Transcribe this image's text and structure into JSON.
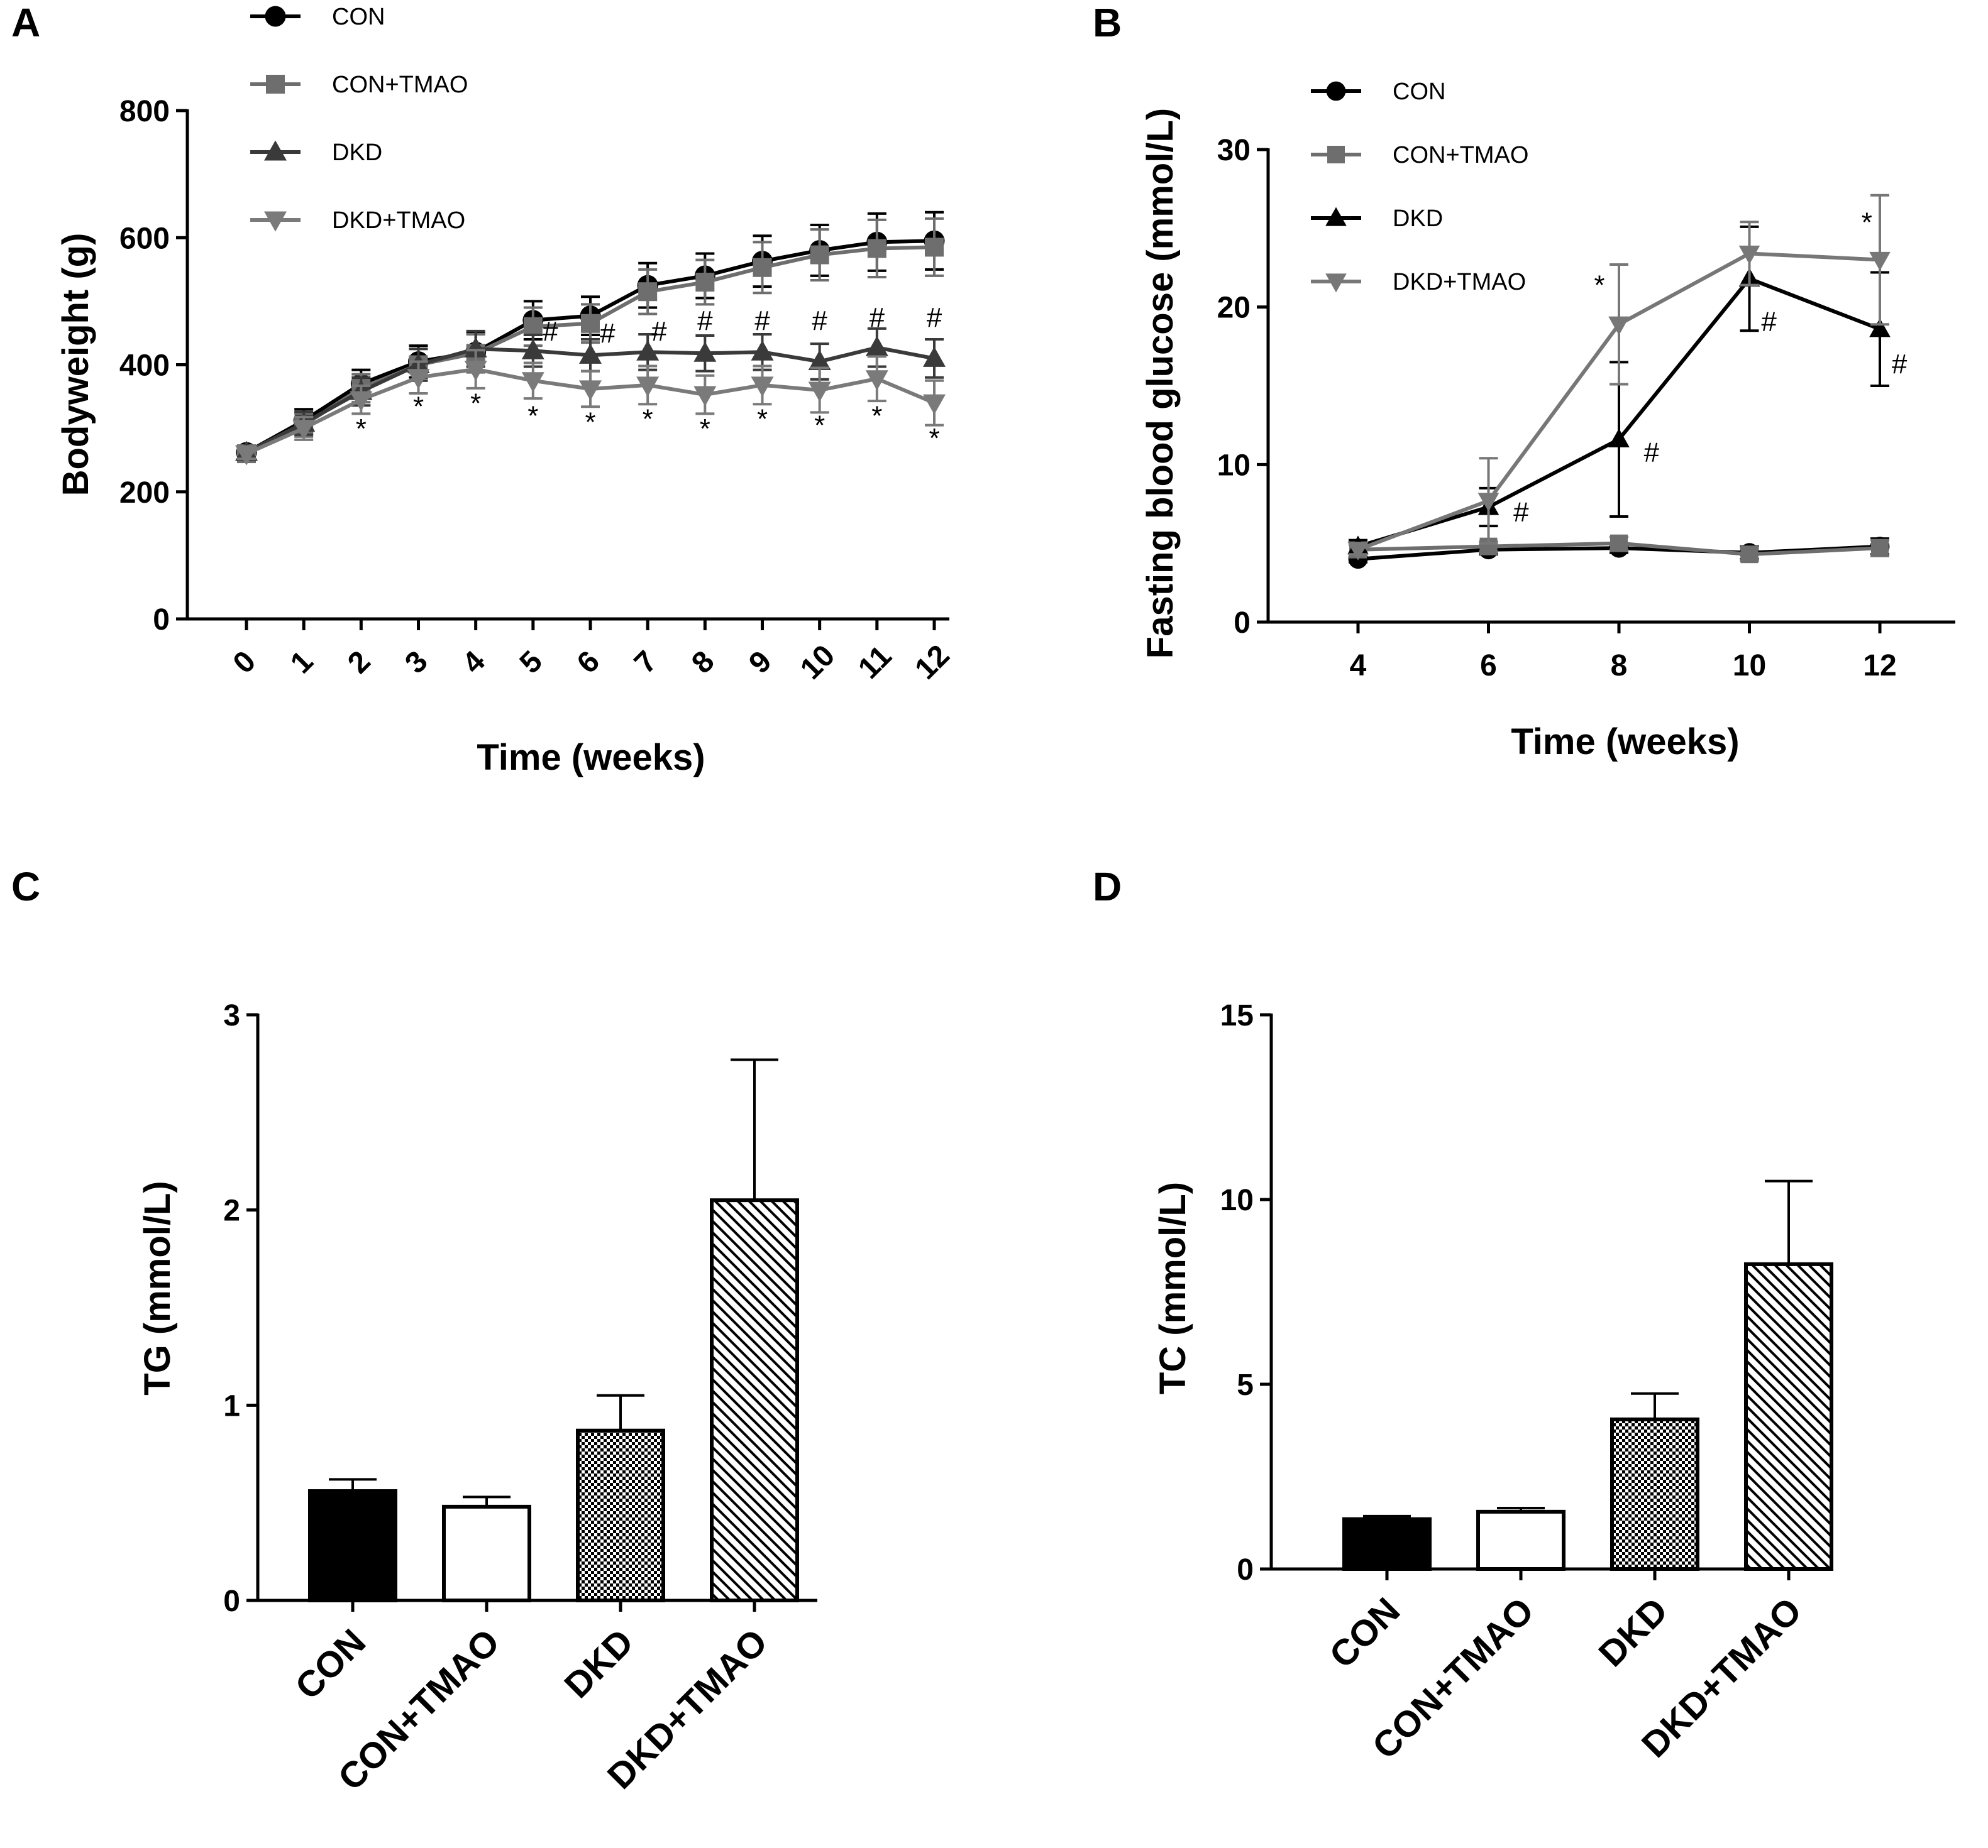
{
  "chart_data": [
    {
      "panel": "A",
      "type": "line",
      "title": "",
      "xlabel": "Time (weeks)",
      "ylabel": "Bodyweight (g)",
      "ylim": [
        0,
        800
      ],
      "yticks": [
        "0",
        "200",
        "400",
        "600",
        "800"
      ],
      "x": [
        0,
        1,
        2,
        3,
        4,
        5,
        6,
        7,
        8,
        9,
        10,
        11,
        12
      ],
      "xticks": [
        "0",
        "1",
        "2",
        "3",
        "4",
        "5",
        "6",
        "7",
        "8",
        "9",
        "10",
        "11",
        "12"
      ],
      "legend_position": "top-left",
      "series": [
        {
          "name": "CON",
          "marker": "circle",
          "color": "#000000",
          "values": [
            262,
            312,
            370,
            405,
            420,
            470,
            477,
            525,
            540,
            563,
            580,
            593,
            595
          ],
          "errors": [
            8,
            18,
            22,
            25,
            30,
            30,
            30,
            35,
            35,
            40,
            40,
            45,
            45
          ]
        },
        {
          "name": "CON+TMAO",
          "marker": "square",
          "color": "#6e6e6e",
          "values": [
            260,
            305,
            363,
            400,
            418,
            460,
            465,
            515,
            530,
            553,
            573,
            583,
            585
          ],
          "errors": [
            8,
            18,
            22,
            25,
            30,
            30,
            30,
            35,
            35,
            40,
            40,
            45,
            45
          ]
        },
        {
          "name": "DKD",
          "marker": "triangle-up",
          "color": "#3a3a3a",
          "values": [
            262,
            308,
            358,
            400,
            425,
            422,
            415,
            420,
            418,
            420,
            405,
            427,
            410
          ],
          "errors": [
            8,
            18,
            22,
            25,
            28,
            25,
            25,
            28,
            28,
            28,
            28,
            30,
            30
          ]
        },
        {
          "name": "DKD+TMAO",
          "marker": "triangle-down",
          "color": "#7a7a7a",
          "values": [
            260,
            300,
            345,
            380,
            393,
            375,
            362,
            368,
            353,
            368,
            360,
            378,
            340
          ],
          "errors": [
            8,
            18,
            22,
            25,
            30,
            28,
            28,
            30,
            30,
            30,
            35,
            35,
            35
          ]
        }
      ],
      "annotations": [
        {
          "text": "*",
          "x": 2,
          "y": 285
        },
        {
          "text": "*",
          "x": 3,
          "y": 320
        },
        {
          "text": "*",
          "x": 4,
          "y": 325
        },
        {
          "text": "*",
          "x": 5,
          "y": 305
        },
        {
          "text": "*",
          "x": 6,
          "y": 295
        },
        {
          "text": "*",
          "x": 7,
          "y": 300
        },
        {
          "text": "*",
          "x": 8,
          "y": 285
        },
        {
          "text": "*",
          "x": 9,
          "y": 300
        },
        {
          "text": "*",
          "x": 10,
          "y": 290
        },
        {
          "text": "*",
          "x": 11,
          "y": 305
        },
        {
          "text": "*",
          "x": 12,
          "y": 270
        },
        {
          "text": "#",
          "x": 5.3,
          "y": 438
        },
        {
          "text": "#",
          "x": 6.3,
          "y": 435
        },
        {
          "text": "#",
          "x": 7.2,
          "y": 438
        },
        {
          "text": "#",
          "x": 8.0,
          "y": 455
        },
        {
          "text": "#",
          "x": 9.0,
          "y": 455
        },
        {
          "text": "#",
          "x": 10.0,
          "y": 455
        },
        {
          "text": "#",
          "x": 11.0,
          "y": 460
        },
        {
          "text": "#",
          "x": 12.0,
          "y": 460
        }
      ]
    },
    {
      "panel": "B",
      "type": "line",
      "title": "",
      "xlabel": "Time (weeks)",
      "ylabel": "Fasting blood glucose (mmol/L)",
      "ylim": [
        0,
        30
      ],
      "yticks": [
        "0",
        "10",
        "20",
        "30"
      ],
      "x": [
        4,
        6,
        8,
        10,
        12
      ],
      "xticks": [
        "4",
        "6",
        "8",
        "10",
        "12"
      ],
      "legend_position": "top-left",
      "series": [
        {
          "name": "CON",
          "marker": "circle",
          "color": "#000000",
          "values": [
            4.0,
            4.6,
            4.7,
            4.4,
            4.8
          ],
          "errors": [
            0.2,
            0.3,
            0.3,
            0.4,
            0.5
          ]
        },
        {
          "name": "CON+TMAO",
          "marker": "square",
          "color": "#6e6e6e",
          "values": [
            4.6,
            4.8,
            5.0,
            4.3,
            4.7
          ],
          "errors": [
            0.3,
            0.3,
            0.4,
            0.4,
            0.5
          ]
        },
        {
          "name": "DKD",
          "marker": "triangle-up",
          "color": "#000000",
          "values": [
            4.8,
            7.3,
            11.6,
            21.8,
            18.6
          ],
          "errors": [
            0.4,
            1.2,
            4.9,
            3.3,
            3.6
          ]
        },
        {
          "name": "DKD+TMAO",
          "marker": "triangle-down",
          "color": "#777777",
          "values": [
            4.6,
            7.7,
            18.9,
            23.4,
            23.0
          ],
          "errors": [
            0.3,
            2.7,
            3.8,
            2.0,
            4.1
          ]
        }
      ],
      "annotations": [
        {
          "text": "#",
          "x": 6.5,
          "y": 6.4
        },
        {
          "text": "#",
          "x": 8.5,
          "y": 10.2
        },
        {
          "text": "#",
          "x": 10.3,
          "y": 18.5
        },
        {
          "text": "#",
          "x": 12.3,
          "y": 15.8
        },
        {
          "text": "*",
          "x": 7.7,
          "y": 20.8
        },
        {
          "text": "*",
          "x": 11.8,
          "y": 24.8
        }
      ]
    },
    {
      "panel": "C",
      "type": "bar",
      "title": "",
      "xlabel": "",
      "ylabel": "TG (mmol/L)",
      "ylim": [
        0,
        3
      ],
      "yticks": [
        "0",
        "1",
        "2",
        "3"
      ],
      "categories": [
        "CON",
        "CON+TMAO",
        "DKD",
        "DKD+TMAO"
      ],
      "fills": [
        "solid",
        "white",
        "checker",
        "diagonal"
      ],
      "values": [
        0.56,
        0.48,
        0.87,
        2.05
      ],
      "errors": [
        0.06,
        0.05,
        0.18,
        0.72
      ]
    },
    {
      "panel": "D",
      "type": "bar",
      "title": "",
      "xlabel": "",
      "ylabel": "TC (mmol/L)",
      "ylim": [
        0,
        15
      ],
      "yticks": [
        "0",
        "5",
        "10",
        "15"
      ],
      "categories": [
        "CON",
        "CON+TMAO",
        "DKD",
        "DKD+TMAO"
      ],
      "fills": [
        "solid",
        "white",
        "checker",
        "diagonal"
      ],
      "values": [
        1.35,
        1.55,
        4.05,
        8.25
      ],
      "errors": [
        0.08,
        0.1,
        0.7,
        2.25
      ]
    }
  ]
}
